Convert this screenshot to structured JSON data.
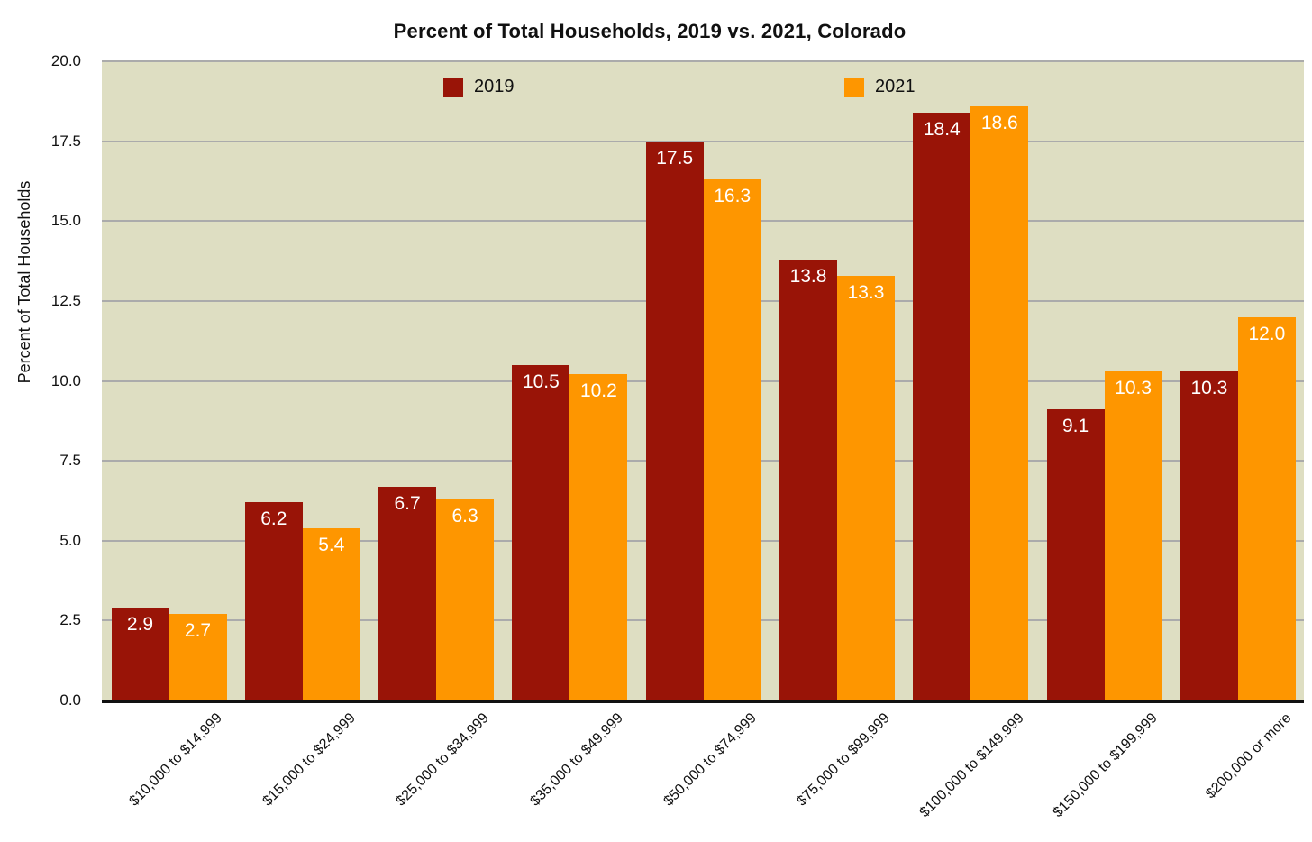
{
  "chart_data": {
    "type": "bar",
    "title": "Percent of Total Households, 2019 vs. 2021, Colorado",
    "ylabel": "Percent of Total Households",
    "xlabel": "",
    "categories": [
      "$10,000 to $14,999",
      "$15,000 to $24,999",
      "$25,000 to $34,999",
      "$35,000 to $49,999",
      "$50,000 to $74,999",
      "$75,000 to $99,999",
      "$100,000 to $149,999",
      "$150,000 to $199,999",
      "$200,000 or more"
    ],
    "series": [
      {
        "name": "2019",
        "color": "#991407",
        "values": [
          2.9,
          6.2,
          6.7,
          10.5,
          17.5,
          13.8,
          18.4,
          9.1,
          10.3
        ]
      },
      {
        "name": "2021",
        "color": "#FE9600",
        "values": [
          2.7,
          5.4,
          6.3,
          10.2,
          16.3,
          13.3,
          18.6,
          10.3,
          12.0
        ]
      }
    ],
    "ylim": [
      0,
      20
    ],
    "yticks": [
      "0.0",
      "2.5",
      "5.0",
      "7.5",
      "10.0",
      "12.5",
      "15.0",
      "17.5",
      "20.0"
    ],
    "grid": true,
    "grid_color": "#ABABAB",
    "plot_bg": "#DEDEC2",
    "axis_line_color": "#111111",
    "value_label_color": "#FFFFFF",
    "legend_position": "top-inside",
    "x_tick_rotation_deg": -45
  }
}
